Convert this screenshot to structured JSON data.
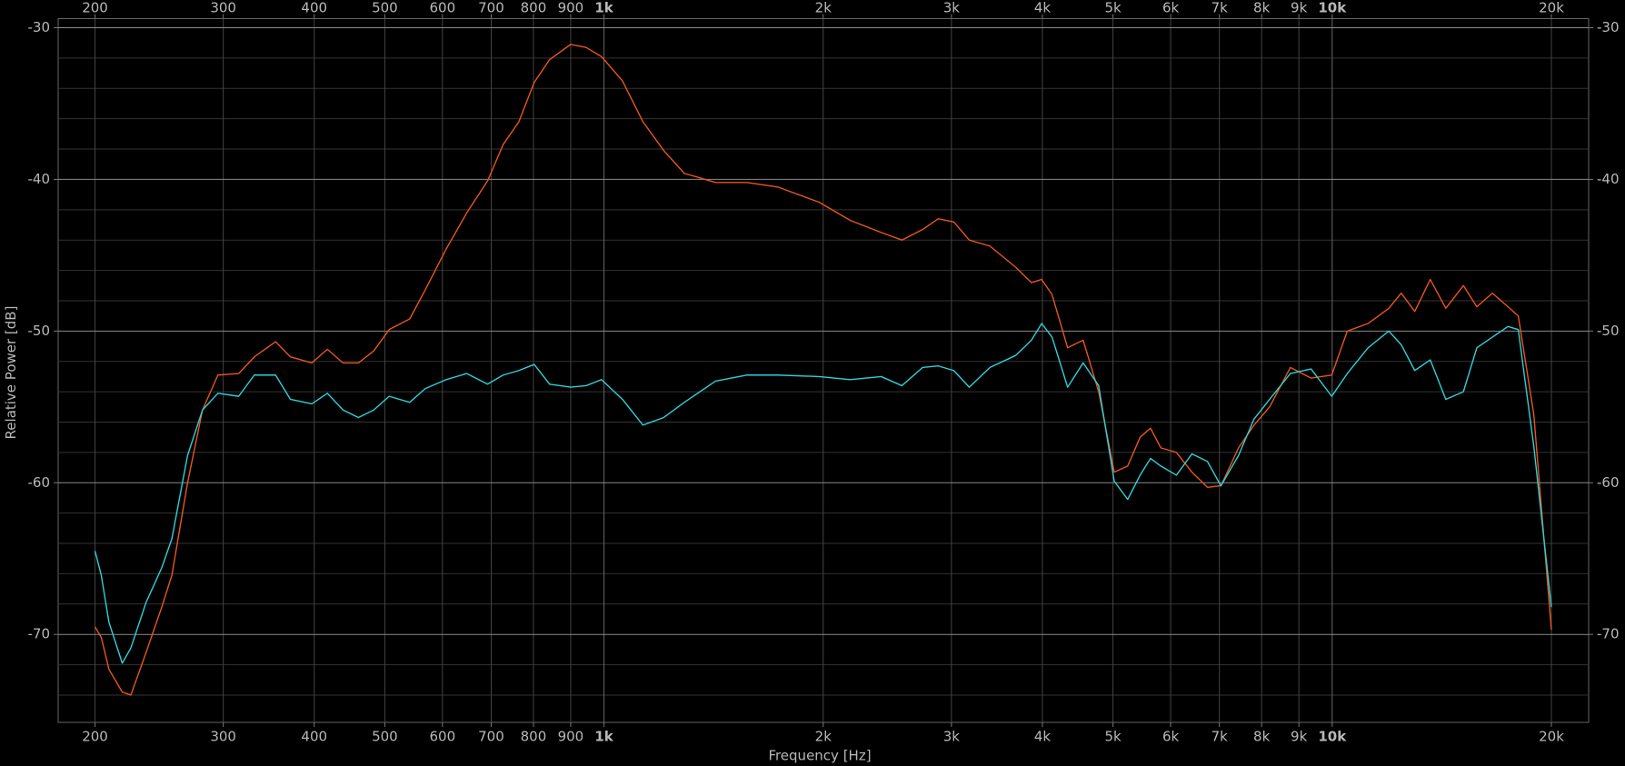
{
  "chart_data": {
    "type": "line",
    "x_label": "Frequency [Hz]",
    "y_label": "Relative Power [dB]",
    "log_x": true,
    "grid": true,
    "xlim": [
      178,
      22500
    ],
    "ylim": [
      -75.8,
      -29.4
    ],
    "xticks": [
      200,
      300,
      400,
      500,
      600,
      700,
      800,
      900,
      {
        "value": 1000,
        "label": "1k"
      },
      {
        "value": 2000,
        "label": "2k"
      },
      {
        "value": 3000,
        "label": "3k"
      },
      {
        "value": 4000,
        "label": "4k"
      },
      {
        "value": 5000,
        "label": "5k"
      },
      {
        "value": 6000,
        "label": "6k"
      },
      {
        "value": 7000,
        "label": "7k"
      },
      {
        "value": 8000,
        "label": "8k"
      },
      {
        "value": 9000,
        "label": "9k"
      },
      {
        "value": 10000,
        "label": "10k"
      },
      {
        "value": 20000,
        "label": "20k"
      }
    ],
    "yticks": [
      -70,
      -60,
      -50,
      -40,
      -30
    ],
    "y_minor_ticks": [
      -74,
      -72,
      -68,
      -66,
      -64,
      -62,
      -58,
      -56,
      -54,
      -52,
      -48,
      -46,
      -44,
      -42,
      -38,
      -36,
      -34,
      -32
    ],
    "x": [
      200,
      204,
      209,
      218,
      224,
      235,
      247,
      255,
      268,
      281,
      295,
      315,
      331,
      354,
      371,
      397,
      417,
      438,
      460,
      483,
      507,
      541,
      568,
      607,
      648,
      692,
      727,
      764,
      802,
      842,
      900,
      945,
      992,
      1060,
      1131,
      1208,
      1289,
      1423,
      1570,
      1732,
      1974,
      2178,
      2403,
      2565,
      2739,
      2877,
      3022,
      3174,
      3389,
      3678,
      3863,
      3991,
      4124,
      4332,
      4550,
      4779,
      5020,
      5238,
      5448,
      5630,
      5817,
      6110,
      6418,
      6741,
      7034,
      7437,
      7811,
      8205,
      8761,
      9354,
      9986,
      10489,
      11203,
      11960,
      12440,
      12983,
      13636,
      14323,
      15141,
      15800,
      16594,
      17430,
      18011,
      18918,
      20000
    ],
    "series": [
      {
        "color": "#e8561c",
        "values": [
          -69.5,
          -70.2,
          -72.3,
          -73.8,
          -74.0,
          -71.2,
          -68.2,
          -66.1,
          -60.0,
          -55.2,
          -52.9,
          -52.8,
          -51.7,
          -50.7,
          -51.7,
          -52.1,
          -51.2,
          -52.1,
          -52.1,
          -51.3,
          -49.9,
          -49.2,
          -47.3,
          -44.6,
          -42.2,
          -40.1,
          -37.7,
          -36.2,
          -33.6,
          -32.1,
          -31.1,
          -31.3,
          -31.9,
          -33.5,
          -36.2,
          -38.1,
          -39.6,
          -40.2,
          -40.2,
          -40.5,
          -41.5,
          -42.7,
          -43.5,
          -44.0,
          -43.3,
          -42.6,
          -42.8,
          -44.0,
          -44.4,
          -45.8,
          -46.8,
          -46.6,
          -47.6,
          -51.1,
          -50.6,
          -54.0,
          -59.3,
          -58.9,
          -57.0,
          -56.4,
          -57.7,
          -58.0,
          -59.3,
          -60.3,
          -60.2,
          -57.7,
          -56.2,
          -55.0,
          -52.4,
          -53.1,
          -52.9,
          -50.0,
          -49.5,
          -48.5,
          -47.5,
          -48.7,
          -46.6,
          -48.5,
          -47.0,
          -48.4,
          -47.5,
          -48.4,
          -49.0,
          -55.5,
          -69.7
        ]
      },
      {
        "color": "#2fd0d8",
        "values": [
          -64.5,
          -66.1,
          -69.2,
          -71.9,
          -70.9,
          -67.9,
          -65.6,
          -63.7,
          -58.2,
          -55.2,
          -54.1,
          -54.3,
          -52.9,
          -52.9,
          -54.5,
          -54.8,
          -54.1,
          -55.2,
          -55.7,
          -55.2,
          -54.3,
          -54.7,
          -53.8,
          -53.2,
          -52.8,
          -53.5,
          -52.9,
          -52.6,
          -52.2,
          -53.5,
          -53.7,
          -53.6,
          -53.2,
          -54.5,
          -56.2,
          -55.7,
          -54.7,
          -53.3,
          -52.9,
          -52.9,
          -53.0,
          -53.2,
          -53.0,
          -53.6,
          -52.4,
          -52.3,
          -52.6,
          -53.7,
          -52.4,
          -51.6,
          -50.6,
          -49.5,
          -50.4,
          -53.7,
          -52.1,
          -53.6,
          -59.9,
          -61.1,
          -59.5,
          -58.4,
          -58.9,
          -59.5,
          -58.1,
          -58.6,
          -60.2,
          -58.2,
          -55.8,
          -54.5,
          -52.8,
          -52.5,
          -54.3,
          -52.8,
          -51.1,
          -50.0,
          -50.9,
          -52.6,
          -51.9,
          -54.5,
          -54.0,
          -51.1,
          -50.4,
          -49.7,
          -49.9,
          -57.6,
          -68.2
        ]
      }
    ]
  }
}
